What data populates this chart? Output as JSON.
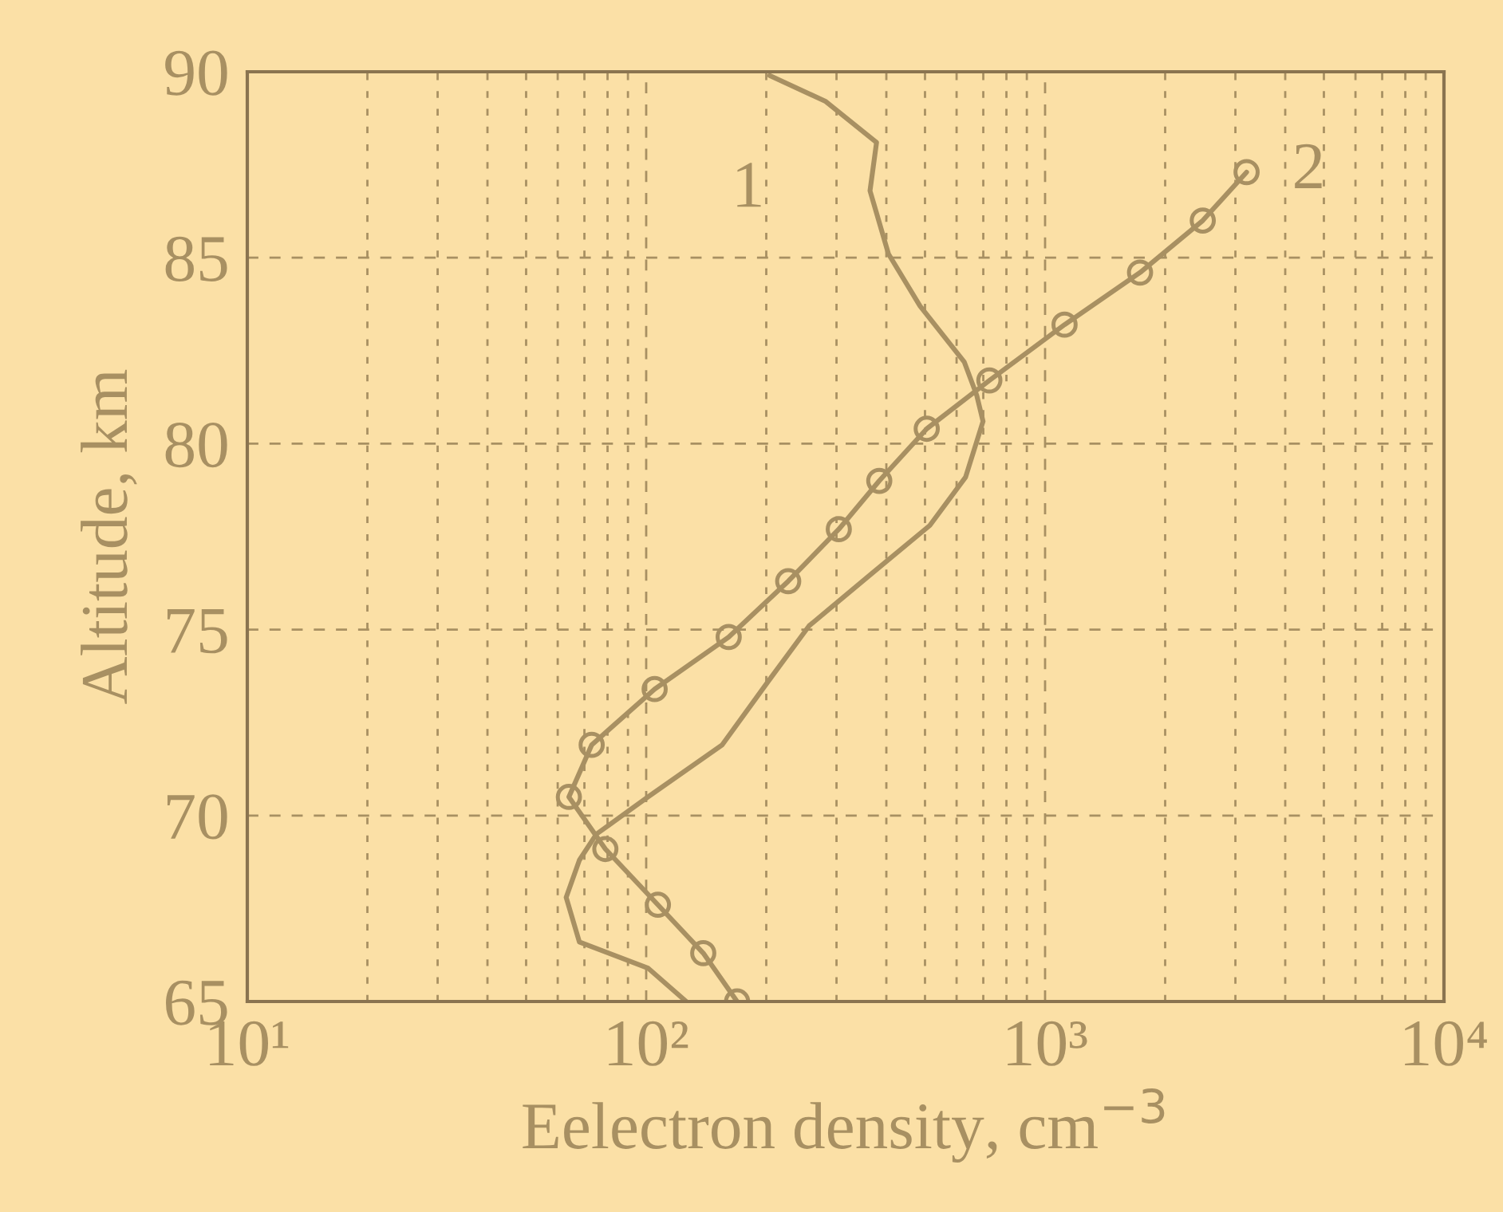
{
  "chart_data": {
    "type": "line",
    "xlabel": "Eelectron density, cm$^{−3}$",
    "ylabel": "Altitude, km",
    "log": "x",
    "grid": true,
    "xlim": [
      10,
      10000
    ],
    "ylim": [
      65,
      90
    ],
    "xticks": [
      {
        "value": 10,
        "label": "10¹"
      },
      {
        "value": 100,
        "label": "10²"
      },
      {
        "value": 1000,
        "label": "10³"
      },
      {
        "value": 10000,
        "label": "10⁴"
      }
    ],
    "yticks": [
      65,
      70,
      75,
      80,
      85,
      90
    ],
    "series": [
      {
        "name": "1",
        "color": "#a89062",
        "marker": "none",
        "x": [
          126,
          101,
          68,
          63,
          68,
          75,
          101,
          155,
          202,
          256,
          367,
          514,
          632,
          699,
          674,
          627,
          486,
          405,
          364,
          378,
          282,
          204
        ],
        "values": [
          65,
          65.9,
          66.6,
          67.8,
          68.8,
          69.5,
          70.5,
          71.9,
          73.6,
          75.1,
          76.5,
          77.8,
          79.1,
          80.6,
          81.3,
          82.2,
          83.7,
          85.1,
          86.8,
          88.1,
          89.2,
          89.9
        ]
      },
      {
        "name": "2",
        "color": "#a89062",
        "marker": "circle",
        "x": [
          169,
          139,
          107,
          79,
          64,
          73,
          105,
          161,
          227,
          304,
          384,
          505,
          725,
          1119,
          1730,
          2485,
          3200
        ],
        "values": [
          65.0,
          66.3,
          67.6,
          69.1,
          70.5,
          71.9,
          73.4,
          74.8,
          76.3,
          77.7,
          79.0,
          80.4,
          81.7,
          83.2,
          84.6,
          86.0,
          87.3
        ]
      }
    ]
  }
}
